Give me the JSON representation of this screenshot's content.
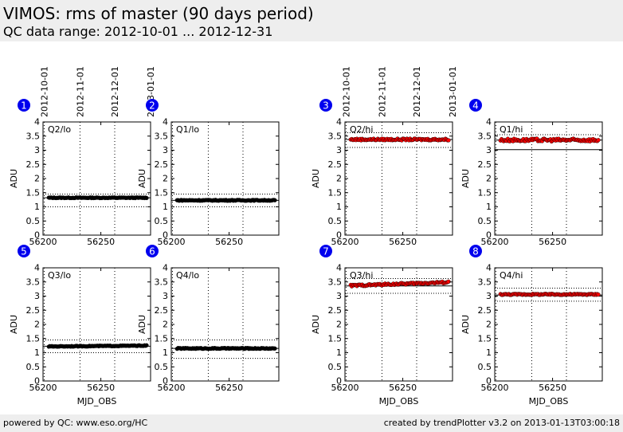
{
  "header": {
    "title": "VIMOS: rms of master (90 days period)",
    "subtitle": "QC data range: 2012-10-01 ... 2012-12-31"
  },
  "footer": {
    "left": "powered by QC: www.eso.org/HC",
    "right": "created by trendPlotter v3.2 on 2013-01-13T03:00:18"
  },
  "colors": {
    "background": "#ffffff",
    "header_bg": "#eeeeee",
    "badge": "#0000ee",
    "lo_series": "#000000",
    "hi_series": "#ff0000"
  },
  "date_tick_labels": [
    "2012-10-01",
    "2012-11-01",
    "2012-12-01",
    "2013-01-01"
  ],
  "chart_data": [
    {
      "type": "scatter",
      "panel": "1",
      "label": "Q2/lo",
      "ylabel": "ADU",
      "xlabel": "",
      "xlim": [
        56200,
        56293
      ],
      "ylim": [
        0.0,
        4.0
      ],
      "yticks": [
        0.0,
        0.5,
        1.0,
        1.5,
        2.0,
        2.5,
        3.0,
        3.5,
        4.0
      ],
      "xticks": [
        56200,
        56250
      ],
      "xgrid": [
        56201,
        56232,
        56262,
        56293
      ],
      "color": "black",
      "series": [
        {
          "start": 56205,
          "end": 56290,
          "step": 0.9,
          "mean": 1.32,
          "jitter": 0.012
        }
      ],
      "ref_lines": [
        {
          "y": 1.32,
          "style": "solid"
        },
        {
          "y": 1.45,
          "style": "dotted"
        },
        {
          "y": 1.0,
          "style": "dotted"
        }
      ]
    },
    {
      "type": "scatter",
      "panel": "2",
      "label": "Q1/lo",
      "ylabel": "ADU",
      "xlabel": "",
      "xlim": [
        56200,
        56293
      ],
      "ylim": [
        0.0,
        4.0
      ],
      "yticks": [
        0.0,
        0.5,
        1.0,
        1.5,
        2.0,
        2.5,
        3.0,
        3.5,
        4.0
      ],
      "xticks": [
        56200,
        56250
      ],
      "xgrid": [
        56201,
        56232,
        56262,
        56293
      ],
      "color": "black",
      "series": [
        {
          "start": 56205,
          "end": 56290,
          "step": 0.9,
          "mean": 1.23,
          "jitter": 0.015
        }
      ],
      "ref_lines": [
        {
          "y": 1.23,
          "style": "solid"
        },
        {
          "y": 1.45,
          "style": "dotted"
        },
        {
          "y": 1.0,
          "style": "dotted"
        }
      ]
    },
    {
      "type": "scatter",
      "panel": "3",
      "label": "Q2/hi",
      "ylabel": "ADU",
      "xlabel": "",
      "xlim": [
        56200,
        56293
      ],
      "ylim": [
        0.0,
        4.0
      ],
      "yticks": [
        0.0,
        0.5,
        1.0,
        1.5,
        2.0,
        2.5,
        3.0,
        3.5,
        4.0
      ],
      "xticks": [
        56200,
        56250
      ],
      "xgrid": [
        56201,
        56232,
        56262,
        56293
      ],
      "color": "red",
      "series": [
        {
          "start": 56205,
          "end": 56290,
          "step": 0.9,
          "mean": 3.38,
          "jitter": 0.03
        }
      ],
      "ref_lines": [
        {
          "y": 3.38,
          "style": "solid"
        },
        {
          "y": 3.62,
          "style": "dotted"
        },
        {
          "y": 3.1,
          "style": "dotted"
        }
      ]
    },
    {
      "type": "scatter",
      "panel": "4",
      "label": "Q1/hi",
      "ylabel": "ADU",
      "xlabel": "",
      "xlim": [
        56200,
        56293
      ],
      "ylim": [
        0.0,
        4.0
      ],
      "yticks": [
        0.0,
        0.5,
        1.0,
        1.5,
        2.0,
        2.5,
        3.0,
        3.5,
        4.0
      ],
      "xticks": [
        56200,
        56250
      ],
      "xgrid": [
        56201,
        56232,
        56262,
        56293
      ],
      "color": "red",
      "series": [
        {
          "start": 56205,
          "end": 56290,
          "step": 0.9,
          "mean": 3.36,
          "jitter": 0.05
        }
      ],
      "ref_lines": [
        {
          "y": 3.36,
          "style": "solid"
        },
        {
          "y": 3.55,
          "style": "dotted"
        },
        {
          "y": 3.02,
          "style": "solid"
        }
      ]
    },
    {
      "type": "scatter",
      "panel": "5",
      "label": "Q3/lo",
      "ylabel": "ADU",
      "xlabel": "MJD_OBS",
      "xlim": [
        56200,
        56293
      ],
      "ylim": [
        0.0,
        4.0
      ],
      "yticks": [
        0.0,
        0.5,
        1.0,
        1.5,
        2.0,
        2.5,
        3.0,
        3.5,
        4.0
      ],
      "xticks": [
        56200,
        56250
      ],
      "xgrid": [
        56201,
        56232,
        56262,
        56293
      ],
      "color": "black",
      "series": [
        {
          "start": 56205,
          "end": 56290,
          "step": 0.9,
          "mean": 1.22,
          "jitter": 0.012,
          "trend": 0.03
        }
      ],
      "ref_lines": [
        {
          "y": 1.23,
          "style": "solid"
        },
        {
          "y": 1.45,
          "style": "dotted"
        },
        {
          "y": 1.0,
          "style": "dotted"
        }
      ]
    },
    {
      "type": "scatter",
      "panel": "6",
      "label": "Q4/lo",
      "ylabel": "ADU",
      "xlabel": "",
      "xlim": [
        56200,
        56293
      ],
      "ylim": [
        0.0,
        4.0
      ],
      "yticks": [
        0.0,
        0.5,
        1.0,
        1.5,
        2.0,
        2.5,
        3.0,
        3.5,
        4.0
      ],
      "xticks": [
        56200,
        56250
      ],
      "xgrid": [
        56201,
        56232,
        56262,
        56293
      ],
      "color": "black",
      "series": [
        {
          "start": 56205,
          "end": 56290,
          "step": 0.9,
          "mean": 1.15,
          "jitter": 0.015
        }
      ],
      "ref_lines": [
        {
          "y": 1.15,
          "style": "solid"
        },
        {
          "y": 1.45,
          "style": "dotted"
        },
        {
          "y": 0.8,
          "style": "dotted"
        }
      ]
    },
    {
      "type": "scatter",
      "panel": "7",
      "label": "Q3/hi",
      "ylabel": "ADU",
      "xlabel": "MJD_OBS",
      "xlim": [
        56200,
        56293
      ],
      "ylim": [
        0.0,
        4.0
      ],
      "yticks": [
        0.0,
        0.5,
        1.0,
        1.5,
        2.0,
        2.5,
        3.0,
        3.5,
        4.0
      ],
      "xticks": [
        56200,
        56250
      ],
      "xgrid": [
        56201,
        56232,
        56262,
        56293
      ],
      "color": "red",
      "series": [
        {
          "start": 56205,
          "end": 56290,
          "step": 0.9,
          "mean": 3.37,
          "jitter": 0.03,
          "trend": 0.12
        }
      ],
      "ref_lines": [
        {
          "y": 3.36,
          "style": "solid"
        },
        {
          "y": 3.62,
          "style": "dotted"
        },
        {
          "y": 3.1,
          "style": "dotted"
        }
      ]
    },
    {
      "type": "scatter",
      "panel": "8",
      "label": "Q4/hi",
      "ylabel": "ADU",
      "xlabel": "MJD_OBS",
      "xlim": [
        56200,
        56293
      ],
      "ylim": [
        0.0,
        4.0
      ],
      "yticks": [
        0.0,
        0.5,
        1.0,
        1.5,
        2.0,
        2.5,
        3.0,
        3.5,
        4.0
      ],
      "xticks": [
        56200,
        56250
      ],
      "xgrid": [
        56201,
        56232,
        56262,
        56293
      ],
      "color": "red",
      "series": [
        {
          "start": 56205,
          "end": 56290,
          "step": 0.9,
          "mean": 3.06,
          "jitter": 0.02
        }
      ],
      "ref_lines": [
        {
          "y": 3.04,
          "style": "solid"
        },
        {
          "y": 3.28,
          "style": "dotted"
        },
        {
          "y": 2.82,
          "style": "dotted"
        }
      ]
    }
  ]
}
